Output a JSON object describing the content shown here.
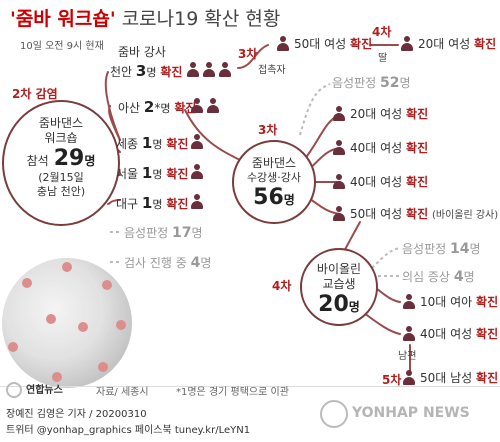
{
  "title": {
    "highlight": "'줌바 워크숍'",
    "rest": " 코로나19 확산 현황"
  },
  "dateline": "10일 오전 9시 현재",
  "stages": {
    "second": "2차 감염",
    "third_top": "3차",
    "third_mid": "3차",
    "fourth_top": "4차",
    "fourth_mid": "4차",
    "fifth": "5차"
  },
  "source_hub": {
    "line1": "줌바댄스",
    "line2": "워크숍",
    "line3": "참석",
    "count": "29",
    "unit": "명",
    "date": "(2월15일",
    "place": "충남 천안)"
  },
  "instructors": {
    "header": "줌바 강사",
    "cheonan": {
      "place": "천안",
      "count": "3",
      "unit": "명",
      "status": "확진"
    }
  },
  "branches": [
    {
      "place": "아산",
      "count": "2",
      "mark": "*",
      "unit": "명",
      "status": "확진",
      "persons": 2
    },
    {
      "place": "세종",
      "count": "1",
      "unit": "명",
      "status": "확진",
      "persons": 1
    },
    {
      "place": "서울",
      "count": "1",
      "unit": "명",
      "status": "확진",
      "persons": 1
    },
    {
      "place": "대구",
      "count": "1",
      "unit": "명",
      "status": "확진",
      "persons": 1
    }
  ],
  "source_negative": {
    "label": "음성판정",
    "count": "17",
    "unit": "명"
  },
  "source_testing": {
    "label": "검사 진행 중",
    "count": "4",
    "unit": "명"
  },
  "contact_chain": {
    "contact_label": "접촉자",
    "first": {
      "desc": "50대 여성",
      "status": "확진"
    },
    "relation": "딸",
    "second": {
      "desc": "20대 여성",
      "status": "확진"
    }
  },
  "student_hub": {
    "line1": "줌바댄스",
    "line2": "수강생·강사",
    "count": "56",
    "unit": "명"
  },
  "student_negative": {
    "label": "음성판정",
    "count": "52",
    "unit": "명"
  },
  "student_cases": [
    {
      "desc": "20대 여성",
      "status": "확진",
      "note": ""
    },
    {
      "desc": "40대 여성",
      "status": "확진",
      "note": ""
    },
    {
      "desc": "40대 여성",
      "status": "확진",
      "note": ""
    },
    {
      "desc": "50대 여성",
      "status": "확진",
      "note": "(바이올린 강사)"
    }
  ],
  "violin_hub": {
    "line1": "바이올린",
    "line2": "교습생",
    "count": "20",
    "unit": "명"
  },
  "violin_negative": {
    "label": "음성판정",
    "count": "14",
    "unit": "명"
  },
  "violin_suspected": {
    "label": "의심 증상",
    "count": "4",
    "unit": "명"
  },
  "violin_cases": [
    {
      "desc": "10대 여아",
      "status": "확진"
    },
    {
      "desc": "40대 여성",
      "status": "확진"
    }
  ],
  "husband": {
    "relation": "남편",
    "desc": "50대 남성",
    "status": "확진"
  },
  "footer": {
    "logo_text": "연합뉴스",
    "source": "자료/ 세종시",
    "footnote": "*1명은 경기 평택으로 이관",
    "credits": "장예진 김영은 기자 / 20200310",
    "social": "트위터 @yonhap_graphics  페이스북 tuney.kr/LeYN1",
    "watermark": "YONHAP NEWS"
  },
  "colors": {
    "accent": "#cc0000",
    "confirmed": "#b11e1e",
    "line": "#9b4b4b",
    "dashed": "#bbbbbb",
    "person": "#6a2f3a"
  }
}
